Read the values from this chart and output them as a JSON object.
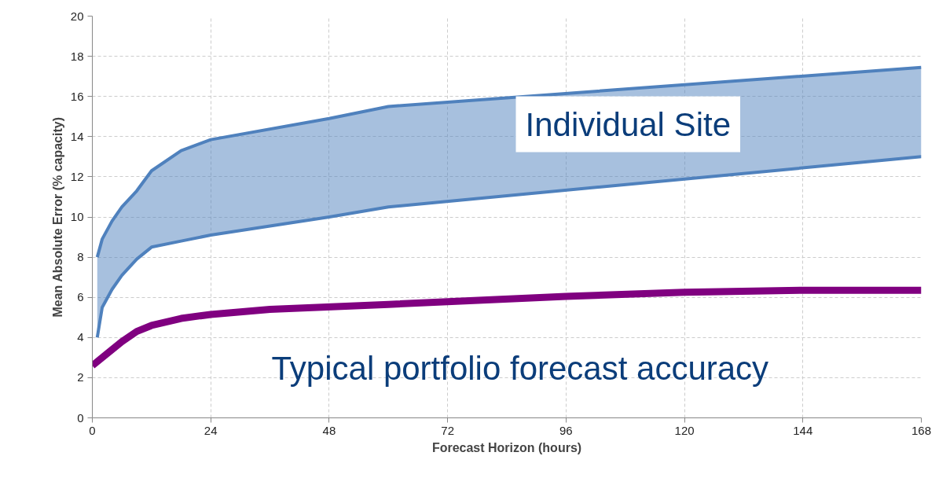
{
  "chart_data": {
    "type": "line",
    "xlabel": "Forecast Horizon (hours)",
    "ylabel": "Mean Absolute Error (% capacity)",
    "xlim": [
      0,
      168
    ],
    "ylim": [
      0,
      20
    ],
    "xticks": [
      0,
      24,
      48,
      72,
      96,
      120,
      144,
      168
    ],
    "yticks": [
      0,
      2,
      4,
      6,
      8,
      10,
      12,
      14,
      16,
      18,
      20
    ],
    "grid": true,
    "line_style": "solid",
    "marker": "none",
    "series": [
      {
        "name": "Individual Site",
        "color": "#4f81bd",
        "x": [
          1,
          2,
          4,
          6,
          9,
          12,
          18,
          24,
          48,
          60,
          168
        ],
        "values": [
          8,
          8.9,
          9.8,
          10.5,
          11.3,
          12.3,
          13.3,
          13.85,
          14.9,
          15.5,
          17.45
        ],
        "lower": [
          4,
          5.5,
          6.4,
          7.1,
          7.9,
          8.5,
          8.8,
          9.1,
          10,
          10.5,
          13
        ],
        "upper": [
          8,
          8.9,
          9.8,
          10.5,
          11.3,
          12.3,
          13.3,
          13.85,
          14.9,
          15.5,
          17.45
        ]
      },
      {
        "color": "#4f81bd",
        "x": [
          1,
          2,
          4,
          6,
          9,
          12,
          18,
          24,
          48,
          60,
          168
        ],
        "values": [
          4,
          5.5,
          6.4,
          7.1,
          7.9,
          8.5,
          8.8,
          9.1,
          10,
          10.5,
          13
        ]
      },
      {
        "name": "Typical portfolio forecast accuracy",
        "color": "#800080",
        "x": [
          0,
          3,
          6,
          9,
          12,
          18,
          24,
          36,
          60,
          96,
          120,
          144,
          168
        ],
        "values": [
          2.6,
          3.2,
          3.8,
          4.3,
          4.6,
          4.95,
          5.15,
          5.4,
          5.65,
          6.05,
          6.25,
          6.35,
          6.35
        ]
      }
    ]
  }
}
